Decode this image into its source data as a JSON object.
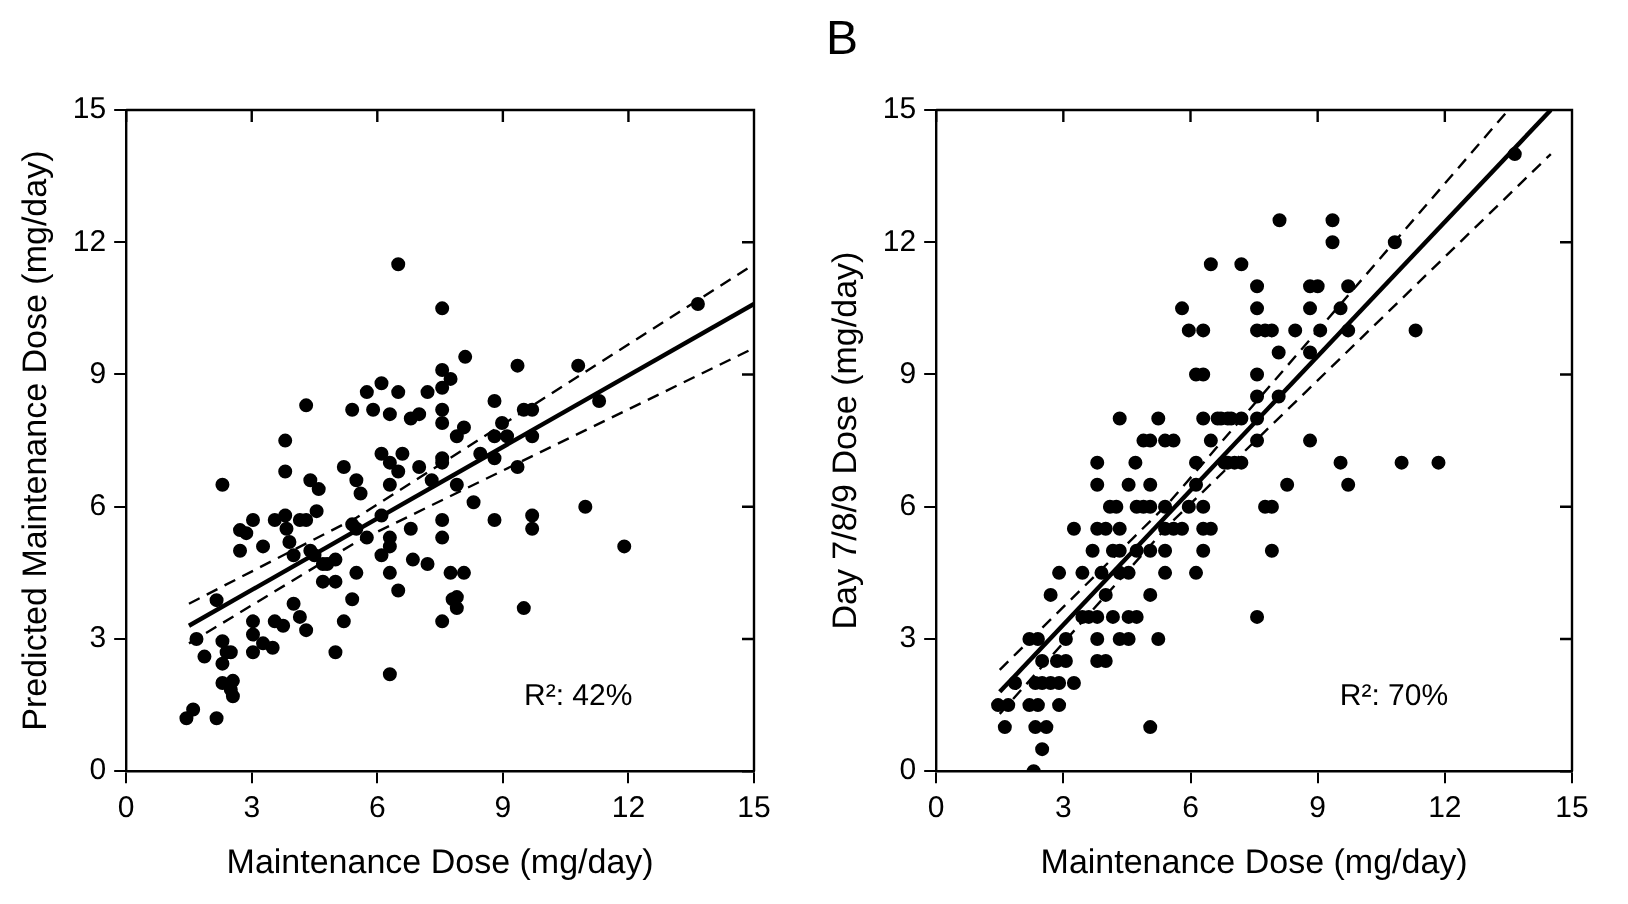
{
  "chart_data": [
    {
      "type": "scatter",
      "xlabel": "Maintenance Dose (mg/day)",
      "ylabel": "Predicted Maintenance Dose (mg/day)",
      "xlim": [
        0,
        15
      ],
      "ylim": [
        0,
        15
      ],
      "xticks": [
        0,
        3,
        6,
        9,
        12,
        15
      ],
      "yticks": [
        0,
        3,
        6,
        9,
        12,
        15
      ],
      "marker": "circle",
      "annotations": [
        "R²: 42%"
      ],
      "series": [
        {
          "type": "scatter",
          "color": "#000000",
          "x": [
            1.44,
            1.6,
            2.16,
            1.68,
            1.87,
            2.3,
            2.3,
            2.4,
            2.5,
            2.3,
            2.55,
            2.55,
            2.5,
            2.16,
            2.3,
            3.03,
            3.03,
            3.03,
            2.72,
            2.87,
            2.72,
            3.03,
            3.27,
            3.55,
            3.75,
            3.5,
            3.27,
            3.55,
            3.8,
            3.83,
            3.9,
            4.0,
            3.8,
            3.8,
            4.0,
            4.15,
            4.3,
            4.15,
            4.3,
            4.3,
            4.4,
            4.6,
            4.55,
            4.4,
            4.5,
            4.7,
            4.8,
            5.0,
            5.0,
            4.7,
            5.0,
            5.2,
            5.4,
            5.5,
            5.5,
            5.4,
            5.6,
            5.5,
            5.2,
            5.4,
            5.75,
            5.9,
            6.1,
            6.3,
            6.5,
            6.5,
            6.1,
            6.3,
            6.5,
            6.3,
            6.1,
            5.75,
            6.1,
            6.3,
            6.3,
            6.3,
            6.5,
            6.3,
            6.6,
            6.8,
            6.85,
            7.2,
            6.8,
            7.0,
            7.2,
            7.0,
            7.3,
            7.55,
            7.55,
            7.55,
            7.55,
            7.55,
            7.55,
            7.55,
            7.55,
            7.55,
            7.55,
            7.75,
            7.8,
            7.75,
            8.1,
            7.9,
            8.07,
            7.9,
            8.3,
            8.46,
            8.07,
            7.9,
            7.9,
            8.8,
            8.8,
            8.8,
            8.98,
            9.1,
            8.8,
            9.35,
            9.5,
            9.7,
            9.7,
            9.35,
            9.7,
            9.7,
            9.5,
            10.8,
            11.3,
            10.97,
            11.9,
            13.66
          ],
          "values": [
            1.2,
            1.4,
            1.2,
            3.0,
            2.6,
            2.95,
            2.44,
            2.7,
            2.7,
            2.0,
            2.05,
            1.7,
            1.85,
            3.88,
            6.5,
            2.7,
            3.1,
            3.4,
            5.47,
            5.4,
            5.0,
            5.7,
            5.1,
            3.4,
            3.3,
            2.8,
            2.9,
            5.7,
            5.8,
            5.5,
            5.2,
            4.9,
            6.8,
            7.5,
            3.8,
            3.5,
            3.2,
            5.7,
            5.7,
            8.3,
            6.6,
            6.4,
            5.9,
            5.0,
            4.9,
            4.7,
            4.7,
            4.8,
            4.3,
            4.3,
            2.7,
            3.4,
            3.9,
            4.5,
            5.5,
            5.6,
            6.3,
            6.6,
            6.9,
            8.2,
            8.6,
            8.2,
            8.8,
            8.1,
            8.6,
            11.5,
            7.2,
            7.0,
            6.8,
            6.5,
            5.8,
            5.3,
            4.9,
            5.3,
            5.1,
            4.5,
            4.1,
            2.2,
            7.2,
            5.5,
            4.8,
            4.7,
            8.0,
            8.1,
            8.6,
            6.9,
            6.6,
            10.5,
            9.1,
            8.7,
            8.2,
            7.9,
            7.1,
            7.0,
            5.7,
            5.3,
            3.4,
            4.5,
            3.9,
            8.9,
            9.4,
            7.6,
            7.8,
            6.5,
            6.1,
            7.2,
            4.5,
            3.95,
            3.7,
            8.4,
            7.1,
            7.6,
            7.9,
            7.6,
            5.7,
            9.2,
            8.2,
            8.2,
            7.6,
            6.9,
            5.8,
            5.5,
            3.7,
            9.2,
            8.4,
            6.0,
            5.1,
            10.6
          ]
        },
        {
          "type": "line",
          "color": "#000000",
          "line_style": "solid",
          "marker": "none",
          "x": [
            1.5,
            15
          ],
          "values": [
            3.3,
            10.6
          ]
        },
        {
          "type": "line",
          "color": "#000000",
          "line_style": "dashed",
          "marker": "none",
          "x": [
            1.5,
            5.5,
            15
          ],
          "values": [
            3.8,
            5.75,
            11.5
          ]
        },
        {
          "type": "line",
          "color": "#000000",
          "line_style": "dashed",
          "marker": "none",
          "x": [
            1.5,
            5.5,
            15
          ],
          "values": [
            2.9,
            5.2,
            9.6
          ]
        }
      ]
    },
    {
      "type": "scatter",
      "title": "B",
      "xlabel": "Maintenance Dose (mg/day)",
      "ylabel": "Day 7/8/9 Dose (mg/day)",
      "xlim": [
        0,
        15
      ],
      "ylim": [
        0,
        15
      ],
      "xticks": [
        0,
        3,
        6,
        9,
        12,
        15
      ],
      "yticks": [
        0,
        3,
        6,
        9,
        12,
        15
      ],
      "marker": "circle",
      "annotations": [
        "R²: 70%"
      ],
      "series": [
        {
          "type": "scatter",
          "color": "#000000",
          "x": [
            2.3,
            2.5,
            1.62,
            2.34,
            2.6,
            5.05,
            1.46,
            1.7,
            2.2,
            2.4,
            2.9,
            1.86,
            2.34,
            2.5,
            2.7,
            2.9,
            3.25,
            2.5,
            2.85,
            3.06,
            3.8,
            4.0,
            2.2,
            2.4,
            3.06,
            3.8,
            4.33,
            4.54,
            5.24,
            3.45,
            3.6,
            3.8,
            4.17,
            4.54,
            4.73,
            2.7,
            4.0,
            5.05,
            2.9,
            3.45,
            3.9,
            4.33,
            4.54,
            5.4,
            6.13,
            3.69,
            4.17,
            4.33,
            4.73,
            5.05,
            5.4,
            6.3,
            3.25,
            3.8,
            4.0,
            4.33,
            5.4,
            5.6,
            5.8,
            6.3,
            6.48,
            4.1,
            4.25,
            4.73,
            4.89,
            5.05,
            5.4,
            5.96,
            6.3,
            3.8,
            4.54,
            5.05,
            6.13,
            3.8,
            4.7,
            6.13,
            6.88,
            4.89,
            5.05,
            5.4,
            5.6,
            6.48,
            4.33,
            5.24,
            6.3,
            6.64,
            6.88,
            6.13,
            6.3,
            5.96,
            6.3,
            5.8,
            6.48,
            13.65,
            8.1,
            9.35,
            9.35,
            10.82,
            7.2,
            7.57,
            8.82,
            9.0,
            9.72,
            7.57,
            8.82,
            9.54,
            7.57,
            7.76,
            7.92,
            8.47,
            9.06,
            9.72,
            11.31,
            8.08,
            8.82,
            7.57,
            7.57,
            8.08,
            6.72,
            6.96,
            7.2,
            7.57,
            7.57,
            8.82,
            6.8,
            7.04,
            7.2,
            9.54,
            10.98,
            11.85,
            8.28,
            9.72,
            7.76,
            7.92,
            7.92,
            7.57
          ],
          "values": [
            0,
            0.5,
            1,
            1,
            1,
            1,
            1.5,
            1.5,
            1.5,
            1.5,
            1.5,
            2,
            2,
            2,
            2,
            2,
            2,
            2.5,
            2.5,
            2.5,
            2.5,
            2.5,
            3,
            3,
            3,
            3,
            3,
            3,
            3,
            3.5,
            3.5,
            3.5,
            3.5,
            3.5,
            3.5,
            4,
            4,
            4,
            4.5,
            4.5,
            4.5,
            4.5,
            4.5,
            4.5,
            4.5,
            5,
            5,
            5,
            5,
            5,
            5,
            5,
            5.5,
            5.5,
            5.5,
            5.5,
            5.5,
            5.5,
            5.5,
            5.5,
            5.5,
            6,
            6,
            6,
            6,
            6,
            6,
            6,
            6,
            6.5,
            6.5,
            6.5,
            6.5,
            7,
            7,
            7,
            7,
            7.5,
            7.5,
            7.5,
            7.5,
            7.5,
            8,
            8,
            8,
            8,
            8,
            9,
            9,
            10,
            10,
            10.5,
            11.5,
            14,
            12.5,
            12.5,
            12,
            12,
            11.5,
            11,
            11,
            11,
            11,
            10.5,
            10.5,
            10.5,
            10,
            10,
            10,
            10,
            10,
            10,
            10,
            9.5,
            9.5,
            9,
            8.5,
            8.5,
            8,
            8,
            8,
            8,
            7.5,
            7.5,
            7,
            7,
            7,
            7,
            7,
            7,
            6.5,
            6.5,
            6,
            6,
            5,
            3.5
          ]
        },
        {
          "type": "line",
          "color": "#000000",
          "line_style": "solid",
          "marker": "none",
          "x": [
            1.5,
            14.5
          ],
          "values": [
            1.8,
            15
          ]
        },
        {
          "type": "line",
          "color": "#000000",
          "line_style": "dashed",
          "marker": "none",
          "x": [
            1.5,
            5.5,
            13.5
          ],
          "values": [
            2.3,
            6.1,
            15
          ]
        },
        {
          "type": "line",
          "color": "#000000",
          "line_style": "dashed",
          "marker": "none",
          "x": [
            1.5,
            5.5,
            14.5
          ],
          "values": [
            1.3,
            5.6,
            14
          ]
        }
      ]
    }
  ]
}
